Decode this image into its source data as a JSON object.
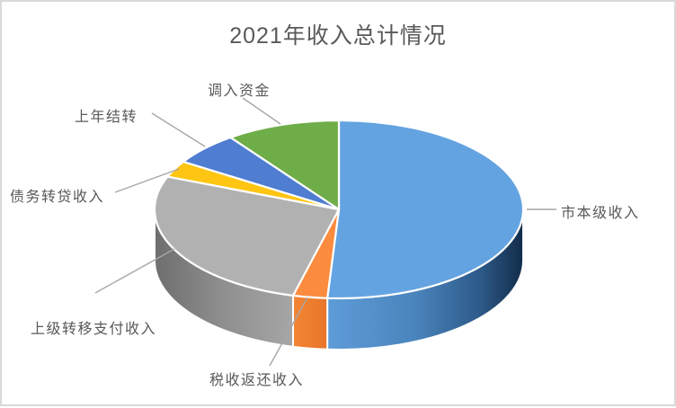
{
  "window": {
    "background": "#FFFFFF",
    "border_color": "#D9D9D9"
  },
  "chart_data": {
    "type": "pie",
    "style": "3d",
    "title": "2021年收入总计情况",
    "title_color": "#595959",
    "label_color": "#595959",
    "leader_line_color": "#A6A6A6",
    "legend_position": "none",
    "start_angle_deg": 0,
    "slices": [
      {
        "label": "市本级收入",
        "percent": 51,
        "color": "#63A3E1"
      },
      {
        "label": "税收返还收入",
        "percent": 3,
        "color": "#FB8B3E"
      },
      {
        "label": "上级转移支付收入",
        "percent": 27,
        "color": "#B1B1B1"
      },
      {
        "label": "债务转贷收入",
        "percent": 3,
        "color": "#FFC513"
      },
      {
        "label": "上年结转",
        "percent": 6,
        "color": "#4E7DD1"
      },
      {
        "label": "调入资金",
        "percent": 10,
        "color": "#6FAD49"
      }
    ]
  }
}
